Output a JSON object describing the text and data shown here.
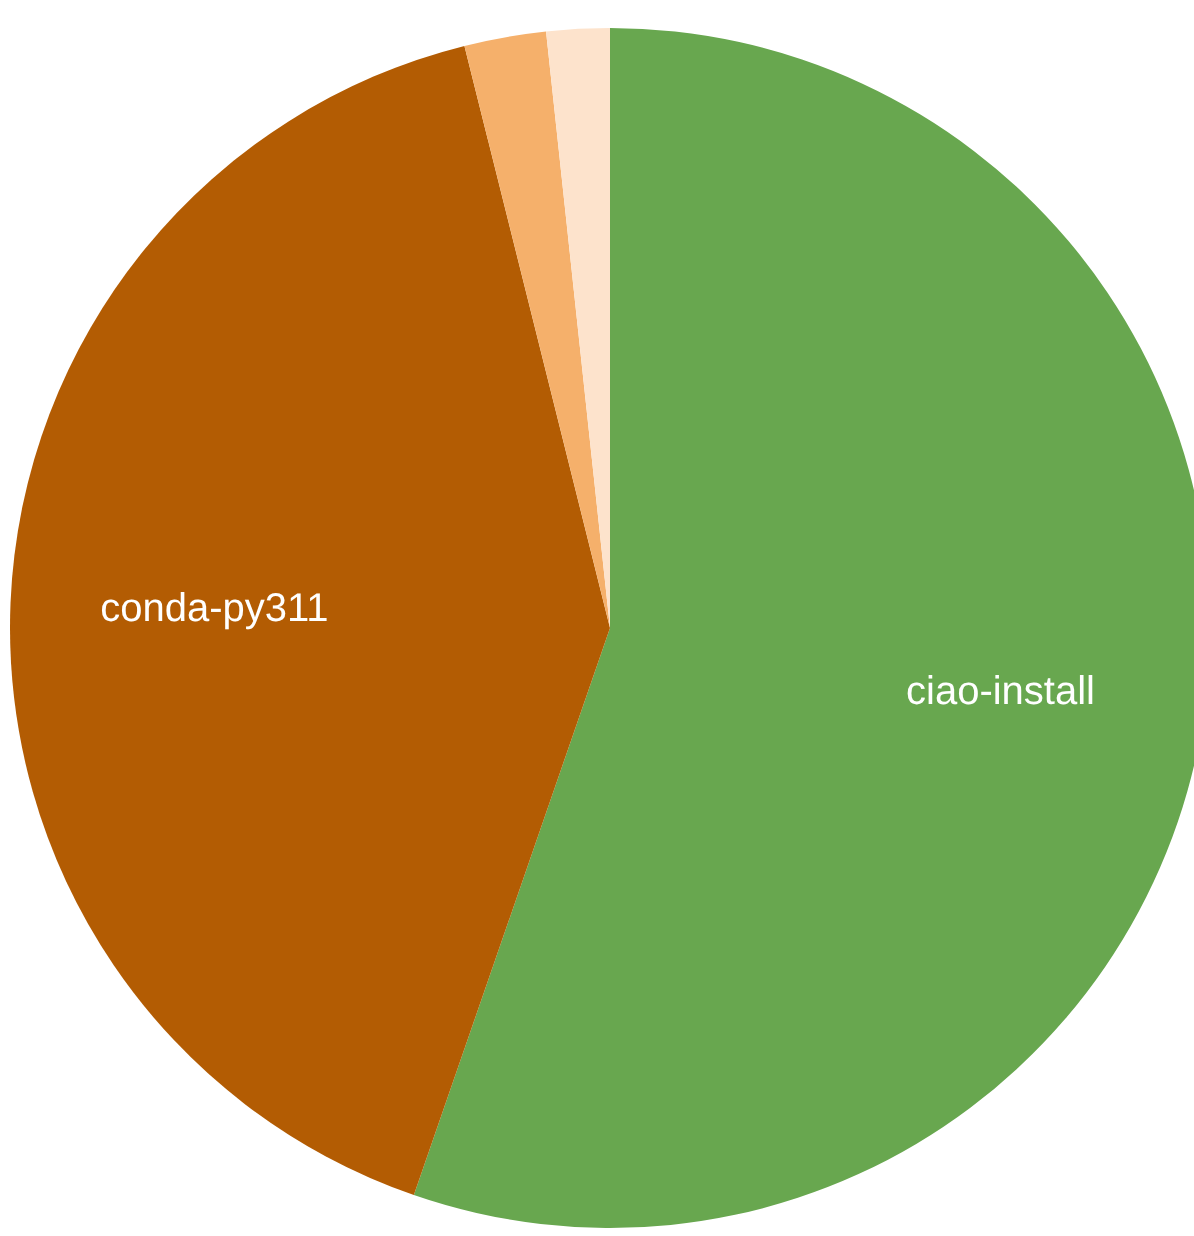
{
  "chart_data": {
    "type": "pie",
    "categories": [
      "ciao-install",
      "conda-py311",
      null,
      null
    ],
    "values": [
      55.3,
      40.8,
      2.2,
      1.7
    ],
    "colors": [
      "#68a74f",
      "#b35c03",
      "#f5b06b",
      "#fde3cc"
    ]
  }
}
